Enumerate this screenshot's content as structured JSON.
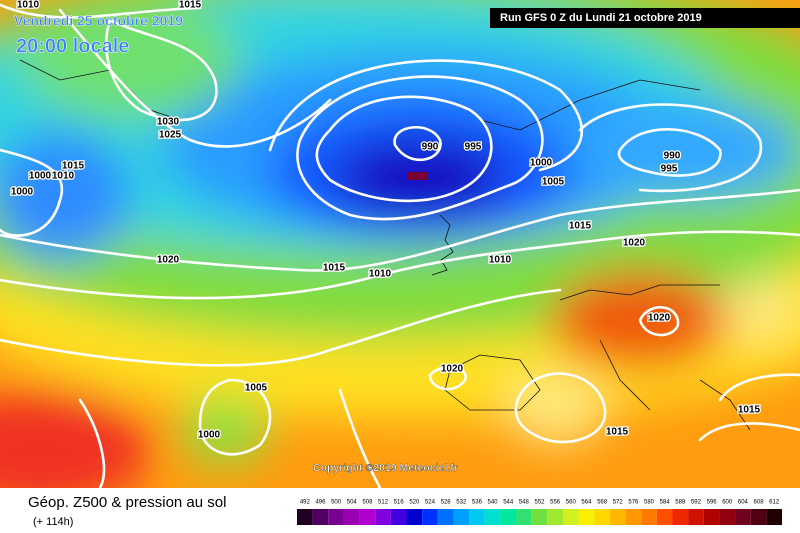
{
  "header": {
    "valid_date": "Vendredi 25 octobre 2019",
    "local_time": "20:00 locale",
    "run": "Run GFS 0 Z du Lundi 21 octobre 2019"
  },
  "copyright": "Copyright ©2019 Meteociel.fr",
  "isobar_labels": [
    1010,
    1015,
    1030,
    1025,
    1015,
    1000,
    1010,
    1000,
    990,
    995,
    1000,
    1005,
    990,
    995,
    1015,
    1020,
    1020,
    1015,
    1010,
    1010,
    1020,
    1020,
    1005,
    1000,
    1015,
    1015
  ],
  "legend": {
    "title": "Géop. Z500 & pression au sol",
    "lead_time": "(+ 114h)",
    "scale": [
      492,
      496,
      500,
      504,
      508,
      512,
      516,
      520,
      524,
      528,
      532,
      536,
      540,
      544,
      548,
      552,
      556,
      560,
      564,
      568,
      572,
      576,
      580,
      584,
      588,
      592,
      596,
      600,
      604,
      608,
      612
    ]
  }
}
